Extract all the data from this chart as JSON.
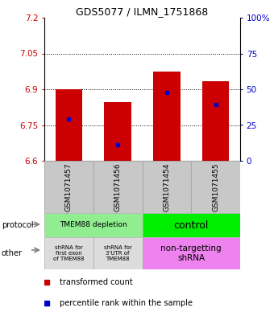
{
  "title": "GDS5077 / ILMN_1751868",
  "samples": [
    "GSM1071457",
    "GSM1071456",
    "GSM1071454",
    "GSM1071455"
  ],
  "ylim": [
    6.6,
    7.2
  ],
  "yticks": [
    6.6,
    6.75,
    6.9,
    7.05,
    7.2
  ],
  "ytick_labels": [
    "6.6",
    "6.75",
    "6.9",
    "7.05",
    "7.2"
  ],
  "right_yticks": [
    0,
    25,
    50,
    75,
    100
  ],
  "right_ytick_labels": [
    "0",
    "25",
    "50",
    "75",
    "100%"
  ],
  "bar_bottoms": [
    6.6,
    6.6,
    6.6,
    6.6
  ],
  "bar_tops": [
    6.9,
    6.845,
    6.975,
    6.935
  ],
  "percentile_values": [
    6.775,
    6.668,
    6.888,
    6.835
  ],
  "dotted_lines": [
    6.75,
    6.9,
    7.05
  ],
  "protocol_label_left": "TMEM88 depletion",
  "protocol_label_right": "control",
  "protocol_color_left": "#90EE90",
  "protocol_color_right": "#00EE00",
  "other_label_0": "shRNA for\nfirst exon\nof TMEM88",
  "other_label_1": "shRNA for\n3'UTR of\nTMEM88",
  "other_label_2": "non-targetting\nshRNA",
  "other_color_gray": "#DCDCDC",
  "other_color_violet": "#EE82EE",
  "bar_color": "#CC0000",
  "percentile_color": "#0000CC",
  "background_color": "#FFFFFF",
  "label_color_left": "#CC0000",
  "label_color_right": "#0000CC",
  "arrow_color": "#808080",
  "sample_bg_color": "#C8C8C8",
  "sample_border_color": "#AAAAAA"
}
